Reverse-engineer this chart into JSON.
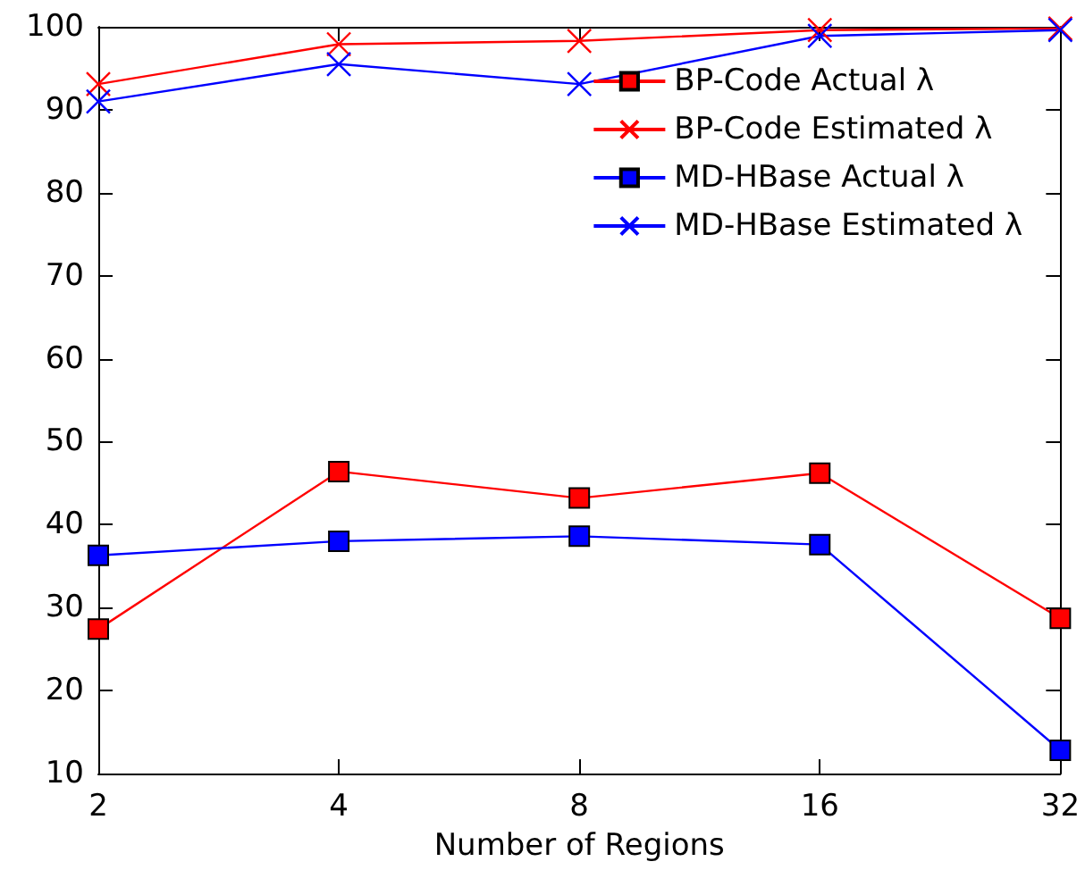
{
  "chart_data": {
    "type": "line",
    "xlabel": "Number of Regions",
    "categories": [
      "2",
      "4",
      "8",
      "16",
      "32"
    ],
    "ylim": [
      10,
      100
    ],
    "yticks": [
      10,
      20,
      30,
      40,
      50,
      60,
      70,
      80,
      90,
      100
    ],
    "grid": false,
    "legend": "top right",
    "series": [
      {
        "name": "BP-Code Actual λ",
        "color": "#ff0000",
        "marker": "square",
        "values": [
          27.4,
          46.4,
          43.2,
          46.2,
          28.7
        ]
      },
      {
        "name": "BP-Code Estimated λ",
        "color": "#ff0000",
        "marker": "cross",
        "values": [
          93.1,
          97.9,
          98.3,
          99.6,
          99.8
        ]
      },
      {
        "name": "MD-HBase Actual λ",
        "color": "#0000ff",
        "marker": "square",
        "values": [
          36.3,
          38.0,
          38.6,
          37.6,
          12.8
        ]
      },
      {
        "name": "MD-HBase Estimated λ",
        "color": "#0000ff",
        "marker": "cross",
        "values": [
          91.0,
          95.5,
          93.1,
          98.9,
          99.6
        ]
      }
    ]
  }
}
